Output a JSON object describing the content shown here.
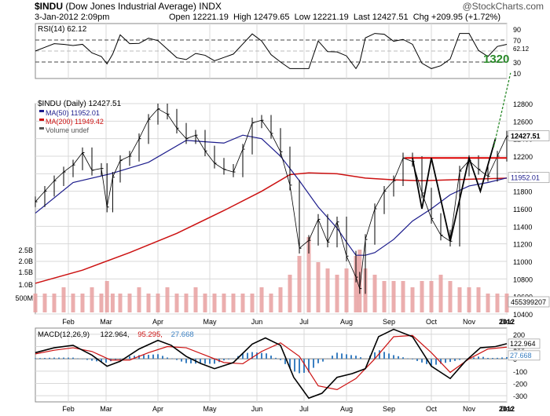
{
  "header": {
    "symbol": "$INDU",
    "name": "(Dow Jones Industrial Average)",
    "exchange": "INDX",
    "watermark": "@StockCharts.com",
    "date": "3-Jan-2012 2:09pm",
    "quote": "Open 12221.19  High 12479.65  Low 12221.19  Last 12427.51  Chg +209.95 (+1.72%)"
  },
  "colors": {
    "price": "#000000",
    "ma50": "#1c1c8c",
    "ma200": "#cc1111",
    "volume": "#e8a0a0",
    "rsi": "#000000",
    "macd_hist": "#3a7fc1",
    "annotation_green": "#2a8a2a",
    "annotation_red": "#dd0000",
    "grid": "#d8d8d8"
  },
  "chart_data": [
    {
      "type": "line",
      "panel": "RSI",
      "label": "RSI(14) 62.12",
      "title": "RSI(14)",
      "last_value": 62.12,
      "ylim": [
        0,
        100
      ],
      "ticks": [
        "90",
        "70",
        "30",
        "10"
      ],
      "overlay_labels": [
        "62.12"
      ],
      "reference_lines": [
        70,
        30
      ],
      "annotation": "1320"
    },
    {
      "type": "line",
      "panel": "Price",
      "title": "$INDU (Daily) 12427.51",
      "legend": [
        "MA(50) 11952.01",
        "MA(200) 11949.42",
        "Volume undef"
      ],
      "ylim": [
        10400,
        12800
      ],
      "y_ticks": [
        "12800",
        "12600",
        "12400",
        "12200",
        "12000",
        "11800",
        "11600",
        "11400",
        "11200",
        "11000",
        "10800",
        "10600",
        "10400"
      ],
      "x_ticks": [
        "Feb",
        "Mar",
        "Apr",
        "May",
        "Jun",
        "Jul",
        "Aug",
        "Sep",
        "Oct",
        "Nov",
        "Dec",
        "2012"
      ],
      "volume_ticks": [
        "2.5B",
        "2.0B",
        "1.5B",
        "1.0B",
        "500M"
      ],
      "value_labels": [
        "12427.51",
        "11952.01",
        "455399207"
      ],
      "series": [
        {
          "name": "Close",
          "x": [
            0,
            5,
            10,
            15,
            20,
            25,
            30,
            35,
            38,
            41,
            45,
            50,
            55,
            60,
            65,
            70,
            75,
            80,
            85,
            90,
            95,
            100,
            105,
            110,
            115,
            120,
            125,
            130,
            135,
            140,
            145,
            150,
            155,
            160,
            165,
            170,
            172,
            175,
            180,
            185,
            190,
            195,
            200,
            205,
            210,
            215,
            220,
            225,
            230,
            235,
            240,
            245,
            250
          ],
          "values": [
            11680,
            11800,
            11920,
            12020,
            12100,
            12240,
            12040,
            12060,
            11620,
            11960,
            12150,
            12200,
            12400,
            12620,
            12740,
            12680,
            12520,
            12400,
            12440,
            12260,
            12120,
            12050,
            12020,
            12280,
            12580,
            12610,
            12460,
            12250,
            11870,
            11150,
            11240,
            11480,
            11220,
            11450,
            11060,
            10820,
            10690,
            11250,
            11600,
            11800,
            11920,
            12180,
            12140,
            11780,
            11490,
            11300,
            11230,
            12030,
            12150,
            12050,
            11970,
            12200,
            12430
          ]
        },
        {
          "name": "MA(50)",
          "x": [
            0,
            20,
            40,
            60,
            80,
            100,
            110,
            120,
            130,
            140,
            150,
            160,
            165,
            170,
            175,
            180,
            190,
            200,
            210,
            220,
            230,
            240,
            250
          ],
          "values": [
            11550,
            11900,
            12000,
            12130,
            12380,
            12350,
            12440,
            12400,
            12200,
            11920,
            11620,
            11380,
            11220,
            11070,
            11070,
            11100,
            11250,
            11460,
            11600,
            11760,
            11860,
            11900,
            11952
          ]
        },
        {
          "name": "MA(200)",
          "x": [
            0,
            25,
            50,
            75,
            100,
            120,
            135,
            145,
            160,
            175,
            190,
            205,
            220,
            235,
            250
          ],
          "values": [
            10750,
            10900,
            11100,
            11320,
            11580,
            11800,
            11990,
            12010,
            12000,
            11950,
            11930,
            11920,
            11930,
            11940,
            11949
          ]
        }
      ],
      "volume_values": [
        3,
        3,
        3,
        4,
        3,
        3,
        4,
        3,
        5,
        3,
        3,
        3,
        4,
        3,
        3,
        4,
        3,
        3,
        4,
        3,
        3,
        3,
        3,
        3,
        3,
        4,
        3,
        4,
        6,
        9,
        12,
        8,
        7,
        6,
        7,
        9,
        10,
        7,
        6,
        5,
        5,
        5,
        4,
        5,
        5,
        6,
        5,
        4,
        4,
        4,
        3,
        3,
        3
      ],
      "annotations": {
        "resistance_level": 12180,
        "target_label": "1320"
      }
    },
    {
      "type": "line",
      "panel": "MACD",
      "title": "MACD(12,26,9) 122.964, 95.295, 27.668",
      "legend": [
        "MACD(12,26,9)",
        "122.964",
        "95.295",
        "27.668"
      ],
      "ylim": [
        -350,
        250
      ],
      "y_ticks": [
        "200",
        "100",
        "0",
        "-100",
        "-200",
        "-300"
      ],
      "value_labels": [
        "122.964",
        "27.668"
      ],
      "x_ticks": [
        "Feb",
        "Mar",
        "Apr",
        "May",
        "Jun",
        "Jul",
        "Aug",
        "Sep",
        "Oct",
        "Nov",
        "Dec",
        "2012"
      ],
      "series": [
        {
          "name": "MACD",
          "x": [
            0,
            10,
            20,
            30,
            38,
            45,
            55,
            65,
            72,
            80,
            88,
            95,
            105,
            115,
            122,
            130,
            137,
            145,
            152,
            160,
            168,
            175,
            182,
            190,
            200,
            210,
            220,
            228,
            236,
            244,
            250
          ],
          "values": [
            50,
            90,
            110,
            30,
            -60,
            -20,
            80,
            150,
            110,
            20,
            -40,
            -80,
            -30,
            120,
            170,
            110,
            -150,
            -320,
            -280,
            -150,
            -120,
            -80,
            180,
            240,
            180,
            -60,
            -160,
            -20,
            90,
            100,
            123
          ]
        },
        {
          "name": "Signal",
          "x": [
            0,
            10,
            20,
            30,
            40,
            50,
            60,
            70,
            80,
            90,
            100,
            110,
            120,
            130,
            140,
            150,
            160,
            170,
            180,
            190,
            200,
            210,
            220,
            230,
            240,
            250
          ],
          "values": [
            40,
            70,
            90,
            60,
            -10,
            -10,
            50,
            100,
            90,
            30,
            -30,
            -40,
            60,
            130,
            20,
            -220,
            -250,
            -160,
            0,
            180,
            190,
            50,
            -110,
            0,
            80,
            95
          ]
        }
      ]
    }
  ]
}
